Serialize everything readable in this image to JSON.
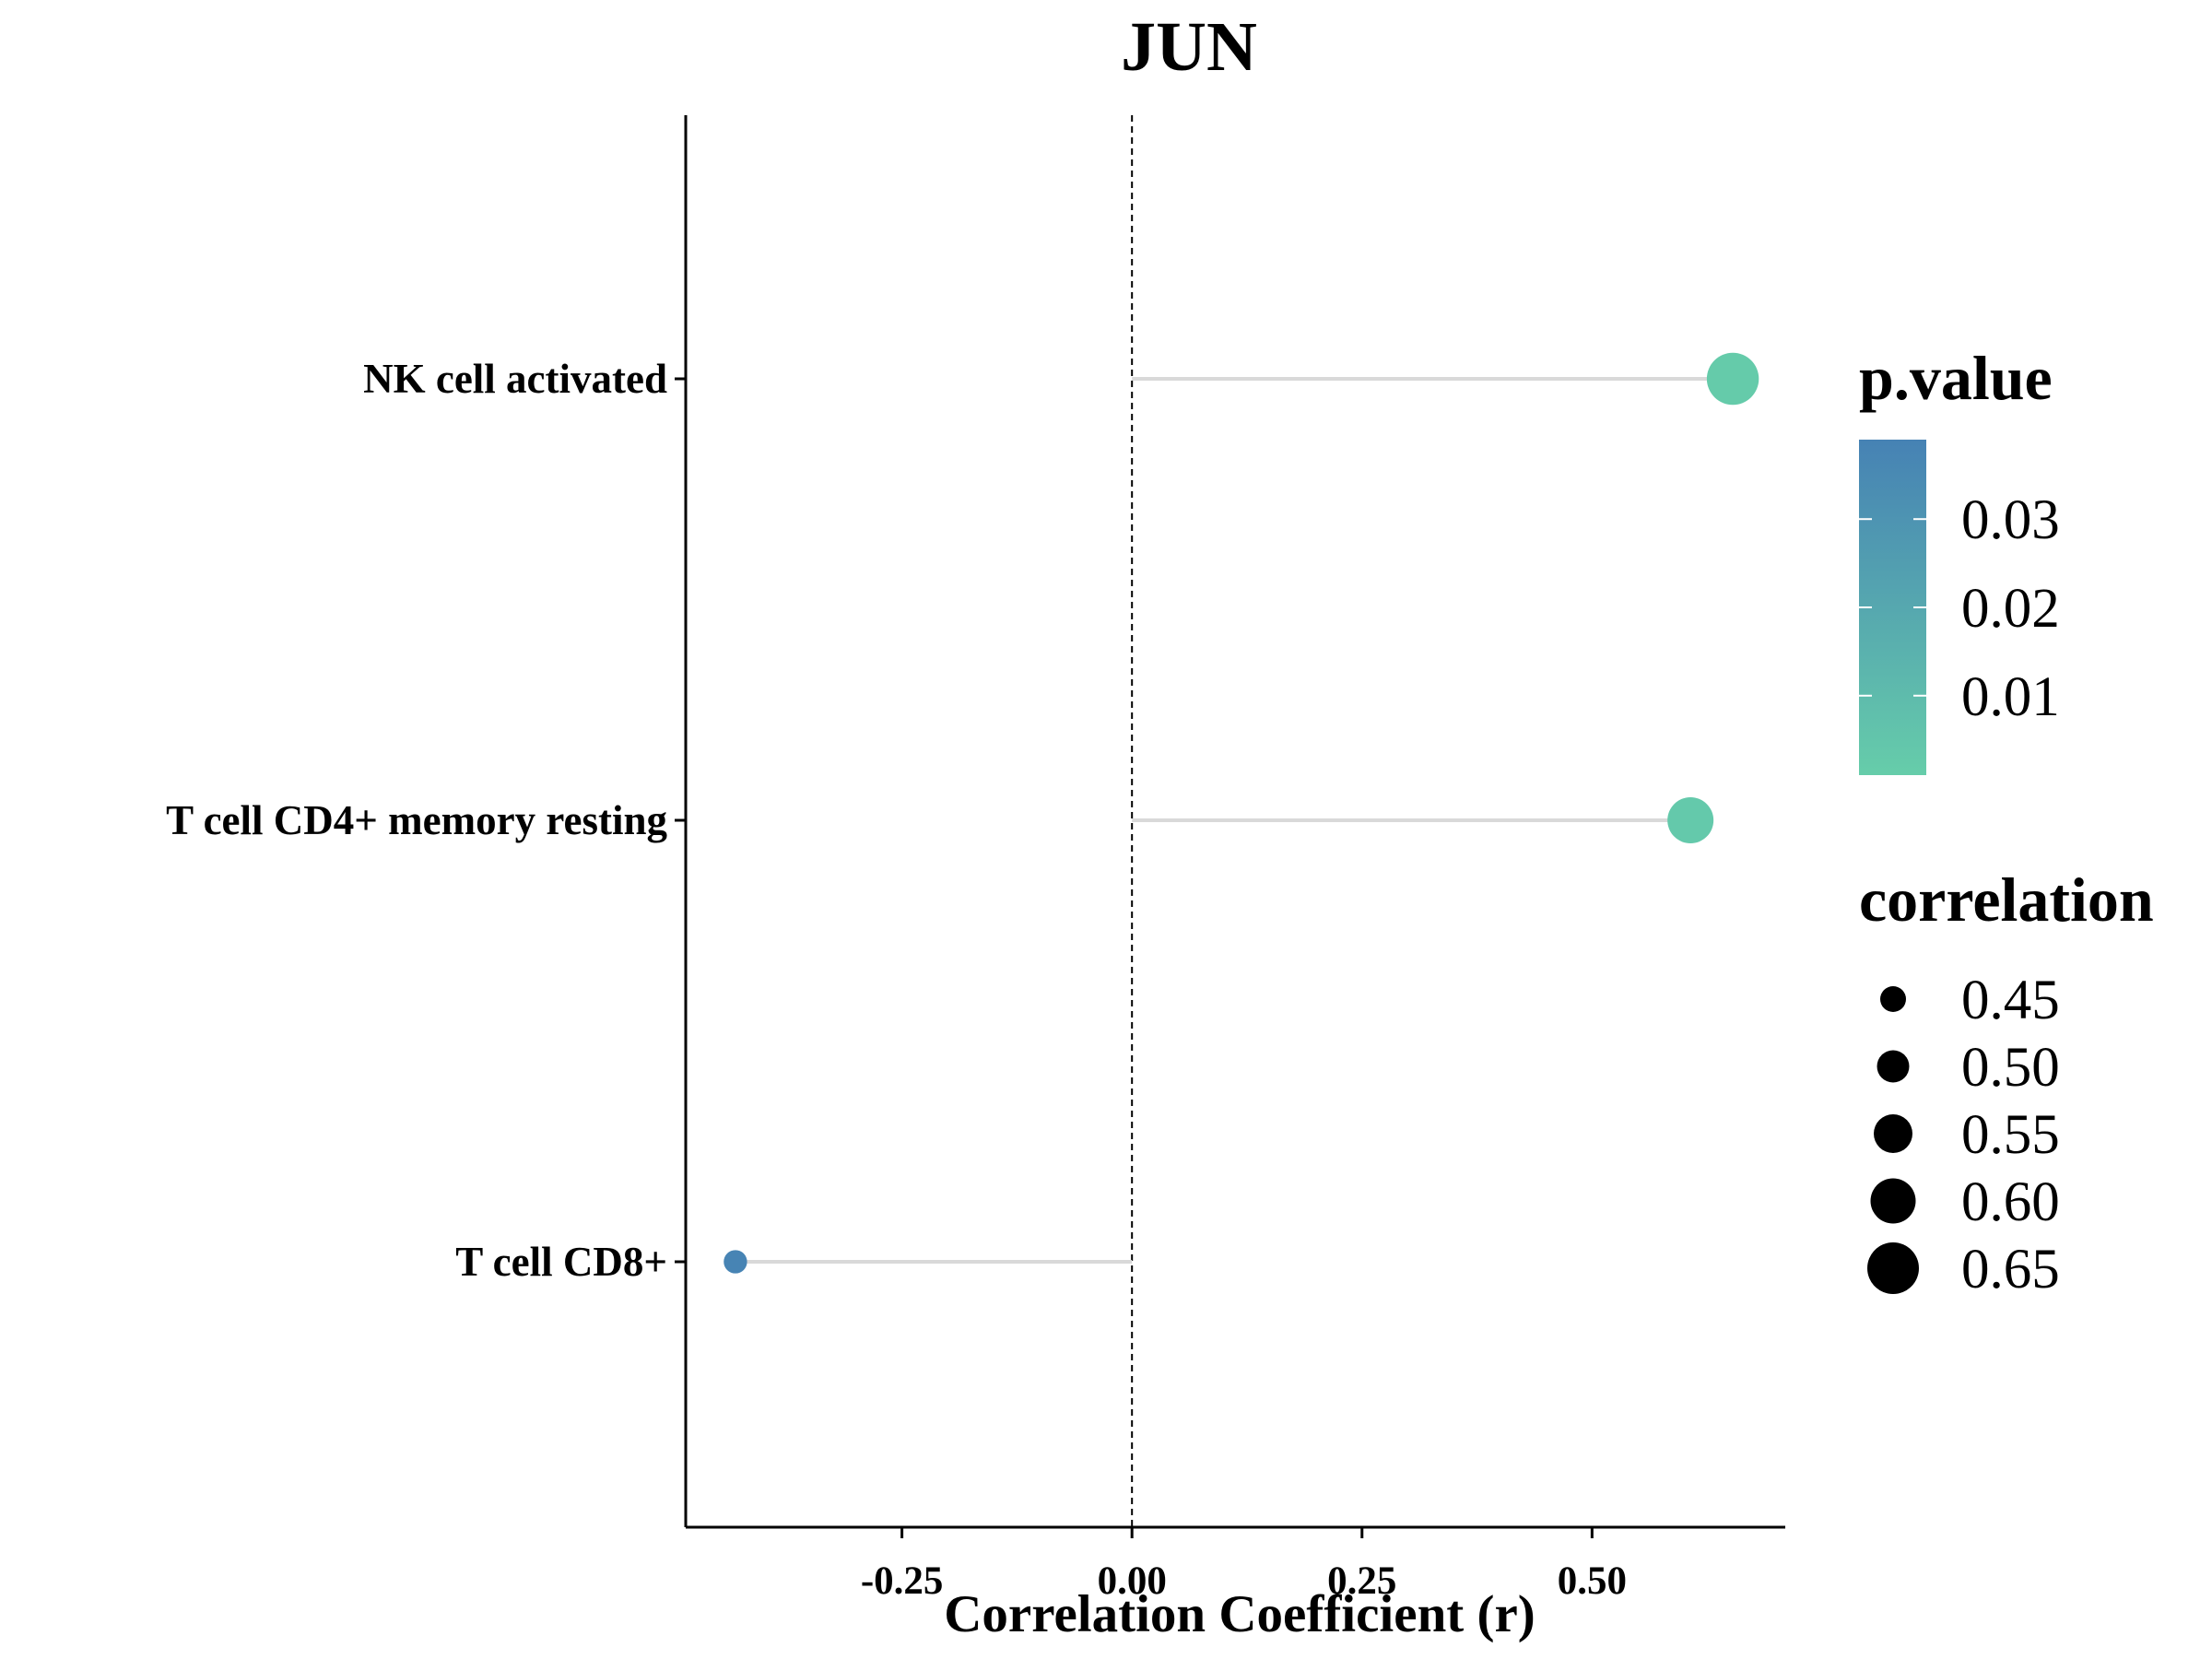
{
  "chart_data": {
    "type": "lollipop",
    "title": "JUN",
    "xlabel": "Correlation Coefficient (r)",
    "ylabel": "",
    "xlim": [
      -0.485,
      0.71
    ],
    "xticks": [
      -0.25,
      0.0,
      0.25,
      0.5
    ],
    "xtick_labels": [
      "-0.25",
      "0.00",
      "0.25",
      "0.50"
    ],
    "reference_line_x": 0,
    "grid": false,
    "categories": [
      "NK cell activated",
      "T cell CD4+ memory resting",
      "T cell CD8+"
    ],
    "values": [
      0.653,
      0.607,
      -0.431
    ],
    "p_values": [
      0.002,
      0.003,
      0.038
    ],
    "colors": {
      "p_low": "#66CDAA",
      "p_high": "#4682B4",
      "stem": "#D9D9D9",
      "axis": "#000000"
    },
    "legend_placement": "right",
    "legend_color": {
      "title": "p.value",
      "range": [
        0.001,
        0.039
      ],
      "ticks": [
        0.03,
        0.02,
        0.01
      ],
      "tick_labels": [
        "0.03",
        "0.02",
        "0.01"
      ]
    },
    "legend_size": {
      "title": "correlation",
      "values": [
        0.45,
        0.5,
        0.55,
        0.6,
        0.65
      ],
      "labels": [
        "0.45",
        "0.50",
        "0.55",
        "0.60",
        "0.65"
      ]
    }
  }
}
